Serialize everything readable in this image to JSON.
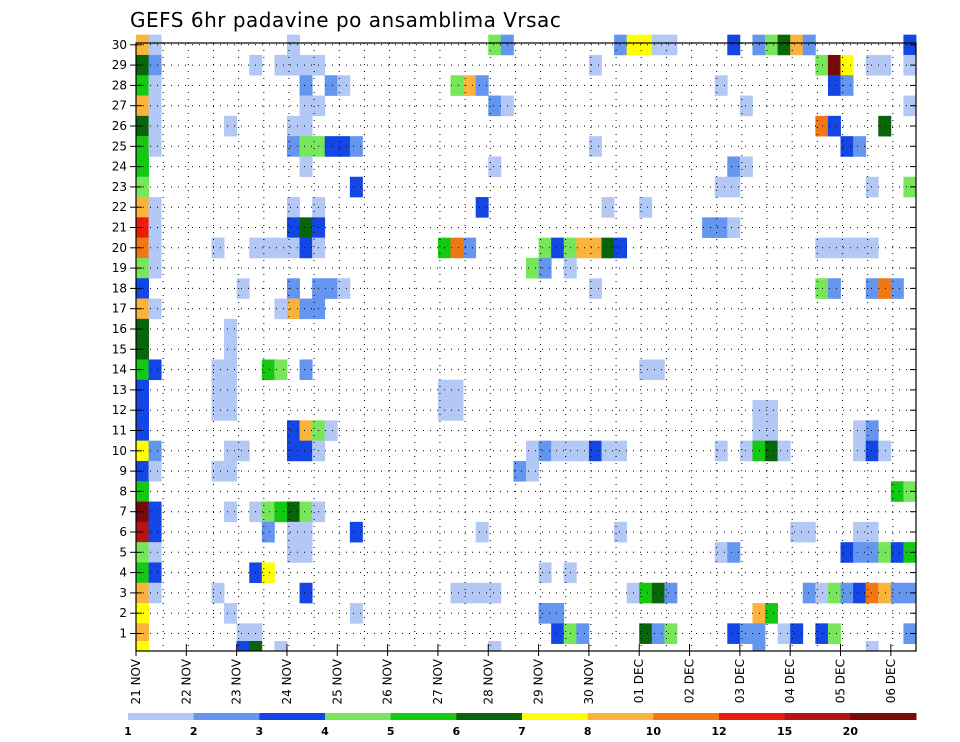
{
  "chart_data": {
    "type": "heatmap",
    "title": "GEFS 6hr padavine po ansamblima Vrsac",
    "xlabel": "",
    "ylabel": "",
    "ylim": [
      1,
      30
    ],
    "grid": true,
    "time_steps": 62,
    "x_ticks": [
      {
        "step": 0,
        "label": "21 NOV"
      },
      {
        "step": 4,
        "label": "22 NOV"
      },
      {
        "step": 8,
        "label": "23 NOV"
      },
      {
        "step": 12,
        "label": "24 NOV"
      },
      {
        "step": 16,
        "label": "25 NOV"
      },
      {
        "step": 20,
        "label": "26 NOV"
      },
      {
        "step": 24,
        "label": "27 NOV"
      },
      {
        "step": 28,
        "label": "28 NOV"
      },
      {
        "step": 32,
        "label": "29 NOV"
      },
      {
        "step": 36,
        "label": "30 NOV"
      },
      {
        "step": 40,
        "label": "01 DEC"
      },
      {
        "step": 44,
        "label": "02 DEC"
      },
      {
        "step": 48,
        "label": "03 DEC"
      },
      {
        "step": 52,
        "label": "04 DEC"
      },
      {
        "step": 56,
        "label": "05 DEC"
      },
      {
        "step": 60,
        "label": "06 DEC"
      }
    ],
    "y_ticks": [
      1,
      2,
      3,
      4,
      5,
      6,
      7,
      8,
      9,
      10,
      11,
      12,
      13,
      14,
      15,
      16,
      17,
      18,
      19,
      20,
      21,
      22,
      23,
      24,
      25,
      26,
      27,
      28,
      29,
      30
    ],
    "colorbar": {
      "levels": [
        "1",
        "2",
        "3",
        "4",
        "5",
        "6",
        "7",
        "8",
        "10",
        "12",
        "15",
        "20"
      ],
      "colors": [
        "#b4c8f5",
        "#6496f0",
        "#1446e6",
        "#78e65a",
        "#14c814",
        "#0a640a",
        "#ffff00",
        "#fab43c",
        "#f07814",
        "#e61e0a",
        "#b41414",
        "#780a0a"
      ]
    },
    "cells": [
      [
        30,
        0,
        8
      ],
      [
        30,
        1,
        1
      ],
      [
        30,
        12,
        1
      ],
      [
        30,
        28,
        4
      ],
      [
        30,
        29,
        2
      ],
      [
        30,
        38,
        2
      ],
      [
        30,
        39,
        7
      ],
      [
        30,
        40,
        7
      ],
      [
        30,
        41,
        1
      ],
      [
        30,
        42,
        1
      ],
      [
        30,
        47,
        3
      ],
      [
        30,
        49,
        2
      ],
      [
        30,
        50,
        4
      ],
      [
        30,
        51,
        6
      ],
      [
        30,
        52,
        8
      ],
      [
        30,
        53,
        2
      ],
      [
        30,
        61,
        3
      ],
      [
        29,
        0,
        6
      ],
      [
        29,
        1,
        2
      ],
      [
        29,
        9,
        1
      ],
      [
        29,
        11,
        1
      ],
      [
        29,
        12,
        1
      ],
      [
        29,
        13,
        1
      ],
      [
        29,
        14,
        1
      ],
      [
        29,
        36,
        1
      ],
      [
        29,
        54,
        4
      ],
      [
        29,
        55,
        12
      ],
      [
        29,
        56,
        7
      ],
      [
        29,
        58,
        1
      ],
      [
        29,
        59,
        1
      ],
      [
        29,
        61,
        1
      ],
      [
        28,
        0,
        5
      ],
      [
        28,
        1,
        1
      ],
      [
        28,
        13,
        2
      ],
      [
        28,
        15,
        2
      ],
      [
        28,
        16,
        1
      ],
      [
        28,
        25,
        4
      ],
      [
        28,
        26,
        8
      ],
      [
        28,
        27,
        2
      ],
      [
        28,
        46,
        1
      ],
      [
        28,
        55,
        3
      ],
      [
        28,
        56,
        2
      ],
      [
        27,
        0,
        8
      ],
      [
        27,
        1,
        1
      ],
      [
        27,
        13,
        1
      ],
      [
        27,
        14,
        1
      ],
      [
        27,
        28,
        2
      ],
      [
        27,
        29,
        1
      ],
      [
        27,
        48,
        1
      ],
      [
        27,
        61,
        1
      ],
      [
        26,
        0,
        6
      ],
      [
        26,
        1,
        1
      ],
      [
        26,
        7,
        1
      ],
      [
        26,
        12,
        1
      ],
      [
        26,
        13,
        1
      ],
      [
        26,
        54,
        9
      ],
      [
        26,
        55,
        3
      ],
      [
        26,
        59,
        6
      ],
      [
        25,
        0,
        5
      ],
      [
        25,
        1,
        1
      ],
      [
        25,
        12,
        2
      ],
      [
        25,
        13,
        4
      ],
      [
        25,
        14,
        4
      ],
      [
        25,
        15,
        3
      ],
      [
        25,
        16,
        3
      ],
      [
        25,
        17,
        2
      ],
      [
        25,
        36,
        1
      ],
      [
        25,
        56,
        3
      ],
      [
        25,
        57,
        2
      ],
      [
        24,
        0,
        5
      ],
      [
        24,
        13,
        1
      ],
      [
        24,
        28,
        1
      ],
      [
        24,
        47,
        2
      ],
      [
        24,
        48,
        1
      ],
      [
        23,
        0,
        4
      ],
      [
        23,
        17,
        3
      ],
      [
        23,
        46,
        1
      ],
      [
        23,
        47,
        1
      ],
      [
        23,
        58,
        1
      ],
      [
        23,
        61,
        4
      ],
      [
        22,
        0,
        8
      ],
      [
        22,
        1,
        1
      ],
      [
        22,
        12,
        1
      ],
      [
        22,
        14,
        1
      ],
      [
        22,
        27,
        3
      ],
      [
        22,
        37,
        1
      ],
      [
        22,
        40,
        1
      ],
      [
        21,
        0,
        10
      ],
      [
        21,
        1,
        1
      ],
      [
        21,
        12,
        3
      ],
      [
        21,
        13,
        6
      ],
      [
        21,
        14,
        3
      ],
      [
        21,
        45,
        2
      ],
      [
        21,
        46,
        2
      ],
      [
        21,
        47,
        1
      ],
      [
        20,
        0,
        9
      ],
      [
        20,
        1,
        1
      ],
      [
        20,
        6,
        1
      ],
      [
        20,
        9,
        1
      ],
      [
        20,
        10,
        1
      ],
      [
        20,
        11,
        1
      ],
      [
        20,
        12,
        1
      ],
      [
        20,
        13,
        3
      ],
      [
        20,
        14,
        1
      ],
      [
        20,
        24,
        5
      ],
      [
        20,
        25,
        9
      ],
      [
        20,
        26,
        2
      ],
      [
        20,
        32,
        4
      ],
      [
        20,
        33,
        3
      ],
      [
        20,
        34,
        4
      ],
      [
        20,
        35,
        8
      ],
      [
        20,
        36,
        8
      ],
      [
        20,
        37,
        6
      ],
      [
        20,
        38,
        3
      ],
      [
        20,
        54,
        1
      ],
      [
        20,
        55,
        1
      ],
      [
        20,
        56,
        1
      ],
      [
        20,
        57,
        1
      ],
      [
        20,
        58,
        1
      ],
      [
        19,
        0,
        4
      ],
      [
        19,
        1,
        1
      ],
      [
        19,
        31,
        4
      ],
      [
        19,
        32,
        2
      ],
      [
        19,
        34,
        1
      ],
      [
        18,
        0,
        3
      ],
      [
        18,
        8,
        1
      ],
      [
        18,
        12,
        2
      ],
      [
        18,
        14,
        2
      ],
      [
        18,
        15,
        2
      ],
      [
        18,
        16,
        1
      ],
      [
        18,
        36,
        1
      ],
      [
        18,
        54,
        4
      ],
      [
        18,
        55,
        2
      ],
      [
        18,
        58,
        2
      ],
      [
        18,
        59,
        9
      ],
      [
        18,
        60,
        2
      ],
      [
        17,
        0,
        8
      ],
      [
        17,
        1,
        1
      ],
      [
        17,
        11,
        1
      ],
      [
        17,
        12,
        8
      ],
      [
        17,
        13,
        2
      ],
      [
        17,
        14,
        2
      ],
      [
        16,
        0,
        6
      ],
      [
        16,
        7,
        1
      ],
      [
        15,
        0,
        6
      ],
      [
        15,
        7,
        1
      ],
      [
        14,
        0,
        5
      ],
      [
        14,
        1,
        3
      ],
      [
        14,
        6,
        1
      ],
      [
        14,
        7,
        1
      ],
      [
        14,
        10,
        5
      ],
      [
        14,
        11,
        4
      ],
      [
        14,
        13,
        2
      ],
      [
        14,
        40,
        1
      ],
      [
        14,
        41,
        1
      ],
      [
        13,
        0,
        3
      ],
      [
        13,
        6,
        1
      ],
      [
        13,
        7,
        1
      ],
      [
        13,
        24,
        1
      ],
      [
        13,
        25,
        1
      ],
      [
        12,
        0,
        3
      ],
      [
        12,
        6,
        1
      ],
      [
        12,
        7,
        1
      ],
      [
        12,
        24,
        1
      ],
      [
        12,
        25,
        1
      ],
      [
        12,
        49,
        1
      ],
      [
        12,
        50,
        1
      ],
      [
        11,
        0,
        3
      ],
      [
        11,
        12,
        3
      ],
      [
        11,
        13,
        8
      ],
      [
        11,
        14,
        4
      ],
      [
        11,
        15,
        1
      ],
      [
        11,
        49,
        1
      ],
      [
        11,
        50,
        1
      ],
      [
        11,
        57,
        1
      ],
      [
        11,
        58,
        2
      ],
      [
        10,
        0,
        7
      ],
      [
        10,
        1,
        2
      ],
      [
        10,
        7,
        1
      ],
      [
        10,
        8,
        1
      ],
      [
        10,
        12,
        3
      ],
      [
        10,
        13,
        3
      ],
      [
        10,
        14,
        1
      ],
      [
        10,
        31,
        1
      ],
      [
        10,
        32,
        2
      ],
      [
        10,
        33,
        1
      ],
      [
        10,
        34,
        1
      ],
      [
        10,
        35,
        1
      ],
      [
        10,
        36,
        3
      ],
      [
        10,
        37,
        1
      ],
      [
        10,
        38,
        1
      ],
      [
        10,
        46,
        1
      ],
      [
        10,
        48,
        1
      ],
      [
        10,
        49,
        5
      ],
      [
        10,
        50,
        6
      ],
      [
        10,
        51,
        1
      ],
      [
        10,
        57,
        1
      ],
      [
        10,
        58,
        3
      ],
      [
        10,
        59,
        1
      ],
      [
        9,
        0,
        3
      ],
      [
        9,
        1,
        1
      ],
      [
        9,
        6,
        1
      ],
      [
        9,
        7,
        1
      ],
      [
        9,
        30,
        2
      ],
      [
        9,
        31,
        1
      ],
      [
        8,
        0,
        5
      ],
      [
        8,
        60,
        5
      ],
      [
        8,
        61,
        4
      ],
      [
        7,
        0,
        12
      ],
      [
        7,
        1,
        3
      ],
      [
        7,
        7,
        1
      ],
      [
        7,
        9,
        1
      ],
      [
        7,
        10,
        4
      ],
      [
        7,
        11,
        5
      ],
      [
        7,
        12,
        6
      ],
      [
        7,
        13,
        4
      ],
      [
        7,
        14,
        1
      ],
      [
        6,
        0,
        11
      ],
      [
        6,
        1,
        3
      ],
      [
        6,
        10,
        2
      ],
      [
        6,
        12,
        1
      ],
      [
        6,
        13,
        1
      ],
      [
        6,
        17,
        3
      ],
      [
        6,
        27,
        1
      ],
      [
        6,
        38,
        1
      ],
      [
        6,
        52,
        1
      ],
      [
        6,
        53,
        1
      ],
      [
        6,
        57,
        1
      ],
      [
        6,
        58,
        1
      ],
      [
        5,
        0,
        4
      ],
      [
        5,
        1,
        1
      ],
      [
        5,
        12,
        1
      ],
      [
        5,
        13,
        1
      ],
      [
        5,
        46,
        1
      ],
      [
        5,
        47,
        2
      ],
      [
        5,
        56,
        3
      ],
      [
        5,
        57,
        2
      ],
      [
        5,
        58,
        2
      ],
      [
        5,
        59,
        4
      ],
      [
        5,
        60,
        3
      ],
      [
        5,
        61,
        5
      ],
      [
        4,
        0,
        5
      ],
      [
        4,
        1,
        3
      ],
      [
        4,
        9,
        3
      ],
      [
        4,
        10,
        7
      ],
      [
        4,
        32,
        1
      ],
      [
        4,
        34,
        1
      ],
      [
        3,
        0,
        8
      ],
      [
        3,
        1,
        1
      ],
      [
        3,
        6,
        1
      ],
      [
        3,
        13,
        3
      ],
      [
        3,
        25,
        1
      ],
      [
        3,
        26,
        1
      ],
      [
        3,
        27,
        1
      ],
      [
        3,
        28,
        1
      ],
      [
        3,
        39,
        1
      ],
      [
        3,
        40,
        5
      ],
      [
        3,
        41,
        6
      ],
      [
        3,
        42,
        2
      ],
      [
        3,
        53,
        2
      ],
      [
        3,
        54,
        1
      ],
      [
        3,
        55,
        4
      ],
      [
        3,
        56,
        2
      ],
      [
        3,
        57,
        3
      ],
      [
        3,
        58,
        9
      ],
      [
        3,
        59,
        8
      ],
      [
        3,
        60,
        2
      ],
      [
        3,
        61,
        2
      ],
      [
        2,
        0,
        7
      ],
      [
        2,
        7,
        1
      ],
      [
        2,
        17,
        1
      ],
      [
        2,
        32,
        2
      ],
      [
        2,
        33,
        2
      ],
      [
        2,
        49,
        8
      ],
      [
        2,
        50,
        5
      ],
      [
        1,
        0,
        8
      ],
      [
        1,
        8,
        1
      ],
      [
        1,
        9,
        1
      ],
      [
        1,
        33,
        3
      ],
      [
        1,
        34,
        4
      ],
      [
        1,
        35,
        2
      ],
      [
        1,
        40,
        6
      ],
      [
        1,
        41,
        2
      ],
      [
        1,
        42,
        4
      ],
      [
        1,
        47,
        3
      ],
      [
        1,
        48,
        2
      ],
      [
        1,
        49,
        2
      ],
      [
        1,
        51,
        1
      ],
      [
        1,
        52,
        3
      ],
      [
        1,
        54,
        3
      ],
      [
        1,
        55,
        4
      ],
      [
        1,
        61,
        2
      ],
      [
        0,
        0,
        7
      ],
      [
        0,
        8,
        3
      ],
      [
        0,
        9,
        6
      ],
      [
        0,
        11,
        1
      ],
      [
        0,
        28,
        1
      ],
      [
        0,
        49,
        2
      ],
      [
        0,
        58,
        1
      ]
    ],
    "extra_cells_note": ""
  }
}
